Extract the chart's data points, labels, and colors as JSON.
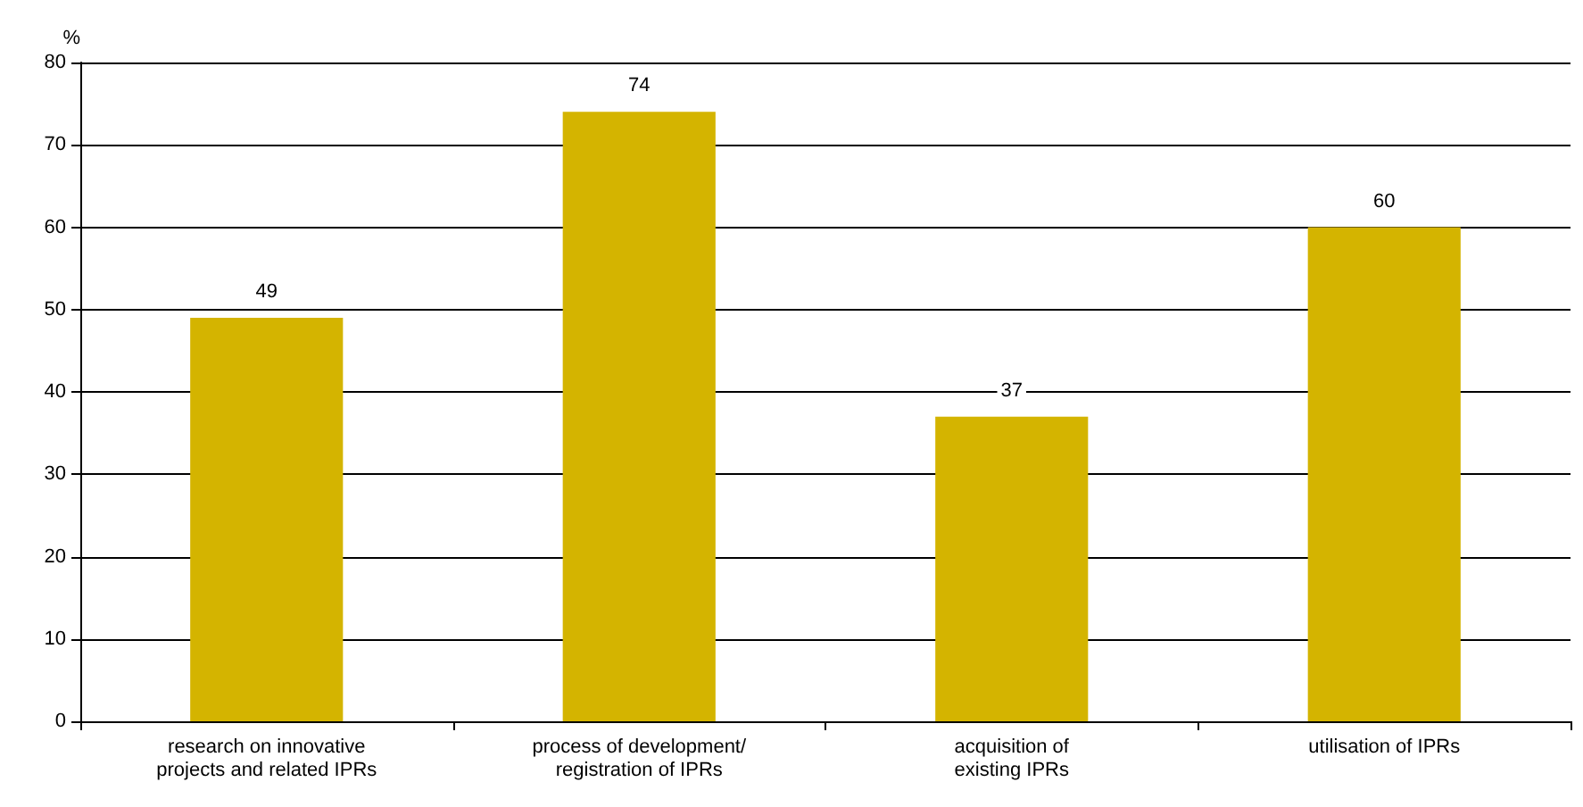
{
  "chart_data": {
    "type": "bar",
    "ylabel": "%",
    "categories": [
      "research on innovative\nprojects and related IPRs",
      "process of development/\nregistration of IPRs",
      "acquisition of\nexisting IPRs",
      "utilisation of IPRs"
    ],
    "values": [
      49,
      74,
      37,
      60
    ],
    "color": "#d4b400",
    "ylim": [
      0,
      80
    ],
    "yticks": [
      0,
      10,
      20,
      30,
      40,
      50,
      60,
      70,
      80
    ],
    "grid": "y",
    "data_labels": true
  }
}
